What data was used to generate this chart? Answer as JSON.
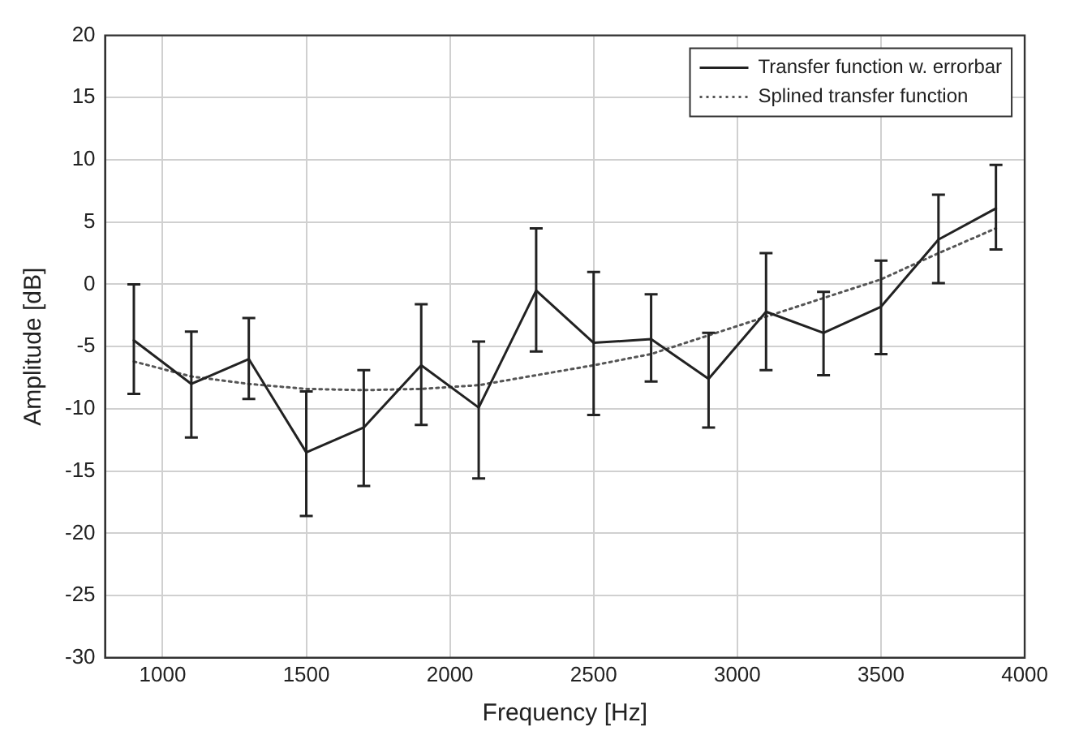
{
  "chart_data": {
    "type": "line",
    "xlabel": "Frequency [Hz]",
    "ylabel": "Amplitude [dB]",
    "xlim": [
      800,
      4000
    ],
    "xticks": [
      1000,
      1500,
      2000,
      2500,
      3000,
      3500,
      4000
    ],
    "ylim": [
      -30,
      20
    ],
    "yticks": [
      -30,
      -25,
      -20,
      -15,
      -10,
      -5,
      0,
      5,
      10,
      15,
      20
    ],
    "grid": true,
    "legend": "top right",
    "marker": "none",
    "series": [
      {
        "name": "Transfer function w. errorbar",
        "color": "#222222",
        "line_style": "solid",
        "x": [
          900,
          1100,
          1300,
          1500,
          1700,
          1900,
          2100,
          2300,
          2500,
          2700,
          2900,
          3100,
          3300,
          3500,
          3700,
          3900
        ],
        "values": [
          -4.5,
          -8,
          -6,
          -13.5,
          -11.5,
          -6.5,
          -9.9,
          -0.5,
          -4.7,
          -4.4,
          -7.6,
          -2.2,
          -3.9,
          -1.8,
          3.6,
          6.1
        ],
        "errors": [
          [
            -8.8,
            0
          ],
          [
            -12.3,
            -3.8
          ],
          [
            -9.2,
            -2.7
          ],
          [
            -18.6,
            -8.6
          ],
          [
            -16.2,
            -6.9
          ],
          [
            -11.3,
            -1.6
          ],
          [
            -15.6,
            -4.6
          ],
          [
            -5.4,
            4.5
          ],
          [
            -10.5,
            1
          ],
          [
            -7.8,
            -0.8
          ],
          [
            -11.5,
            -3.9
          ],
          [
            -6.9,
            2.5
          ],
          [
            -7.3,
            -0.6
          ],
          [
            -5.6,
            1.9
          ],
          [
            0.1,
            7.2
          ],
          [
            2.8,
            9.6
          ]
        ]
      },
      {
        "name": "Splined transfer function",
        "color": "#555555",
        "line_style": "dotted",
        "x": [
          900,
          1100,
          1300,
          1500,
          1700,
          1900,
          2100,
          2300,
          2500,
          2700,
          2900,
          3100,
          3300,
          3500,
          3700,
          3900
        ],
        "values": [
          -6.2,
          -7.4,
          -8,
          -8.4,
          -8.5,
          -8.4,
          -8.1,
          -7.3,
          -6.5,
          -5.6,
          -4.1,
          -2.6,
          -1.1,
          0.4,
          2.5,
          4.5
        ]
      }
    ]
  }
}
